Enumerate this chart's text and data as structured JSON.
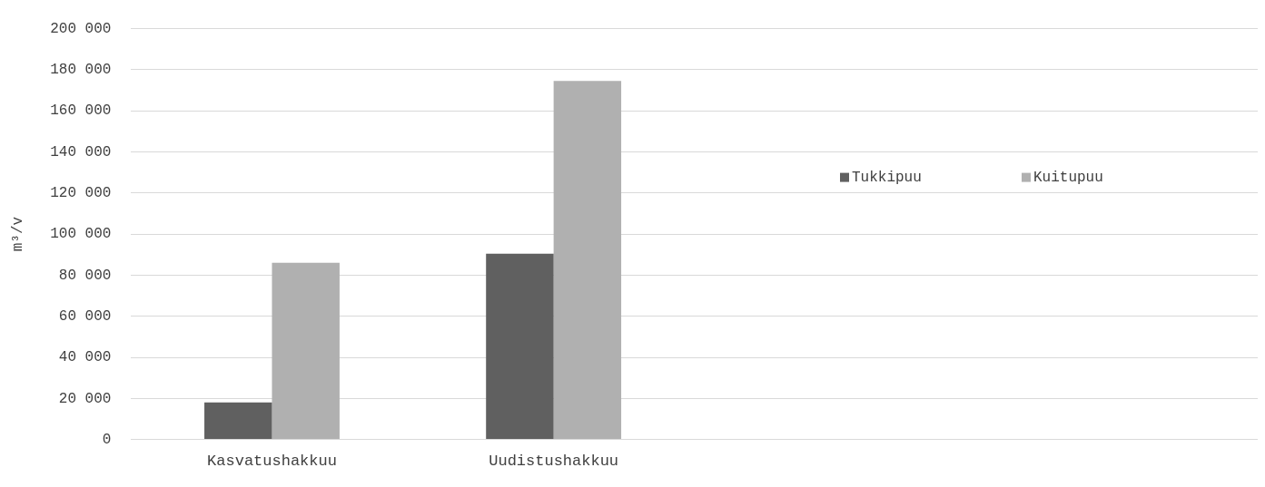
{
  "chart_data": {
    "type": "bar",
    "ylabel": "m³/v",
    "categories": [
      "Kasvatushakkuu",
      "Uudistushakkuu",
      null,
      null
    ],
    "series": [
      {
        "name": "Tukkipuu",
        "color": "#606060",
        "values": [
          18000,
          90400,
          null,
          null
        ]
      },
      {
        "name": "Kuitupuu",
        "color": "#b0b0b0",
        "values": [
          86000,
          174500,
          null,
          null
        ]
      }
    ],
    "ylim": [
      0,
      200000
    ],
    "yticks": [
      0,
      {
        "value": 20000,
        "label": "20 000"
      },
      {
        "value": 40000,
        "label": "40 000"
      },
      {
        "value": 60000,
        "label": "60 000"
      },
      {
        "value": 80000,
        "label": "80 000"
      },
      {
        "value": 100000,
        "label": "100 000"
      },
      {
        "value": 120000,
        "label": "120 000"
      },
      {
        "value": 140000,
        "label": "140 000"
      },
      {
        "value": 160000,
        "label": "160 000"
      },
      {
        "value": 180000,
        "label": "180 000"
      },
      {
        "value": 200000,
        "label": "200 000"
      }
    ],
    "grid": "y",
    "legend": "top right"
  }
}
